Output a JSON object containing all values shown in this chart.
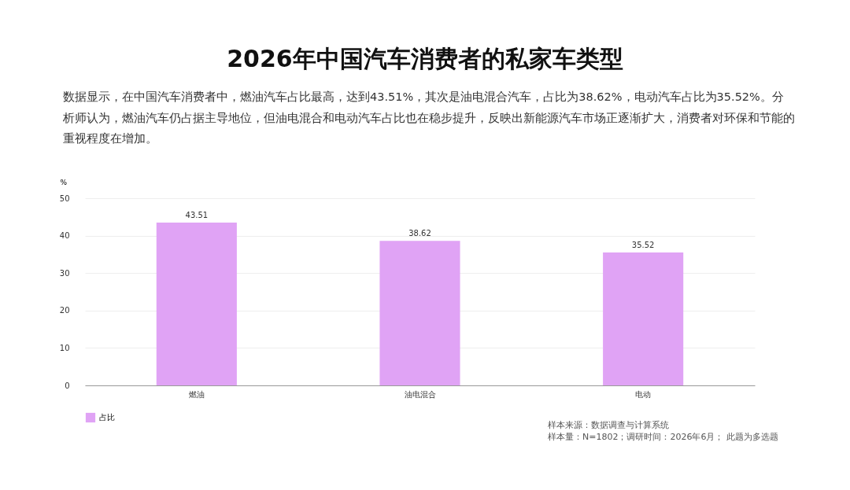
{
  "chart_data": {
    "type": "bar",
    "title": "2026年中国汽车消费者的私家车类型",
    "subtitle": "数据显示，在中国汽车消费者中，燃油汽车占比最高，达到43.51%，其次是油电混合汽车，占比为38.62%，电动汽车占比为35.52%。分析师认为，燃油汽车仍占据主导地位，但油电混合和电动汽车占比也在稳步提升，反映出新能源汽车市场正逐渐扩大，消费者对环保和节能的重视程度在增加。",
    "ylabel": "%",
    "categories": [
      "燃油",
      "油电混合",
      "电动"
    ],
    "series": [
      {
        "name": "占比",
        "color": "#e0a3f5",
        "values": [
          43.51,
          38.62,
          35.52
        ]
      }
    ],
    "ylim": [
      0,
      50
    ],
    "yticks": [
      0,
      10,
      20,
      30,
      40,
      50
    ],
    "grid": "y",
    "legend": "bottom",
    "data_labels": true,
    "annotations": [
      "样本来源：数据调查与计算系统",
      "样本量：N=1802；调研时间：2026年6月； 此题为多选题"
    ]
  }
}
